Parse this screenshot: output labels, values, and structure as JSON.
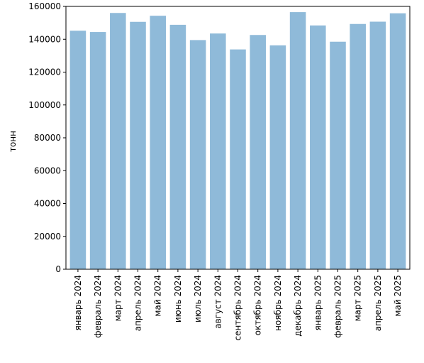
{
  "chart_data": {
    "type": "bar",
    "ylabel": "тонн",
    "xlabel": "",
    "title": "",
    "ylim": [
      0,
      160000
    ],
    "yticks": [
      0,
      20000,
      40000,
      60000,
      80000,
      100000,
      120000,
      140000,
      160000
    ],
    "categories": [
      "январь 2024",
      "февраль 2024",
      "март 2024",
      "апрель 2024",
      "май 2024",
      "июнь 2024",
      "июль 2024",
      "август 2024",
      "сентябрь 2024",
      "октябрь 2024",
      "ноябрь 2024",
      "декабрь 2024",
      "январь 2025",
      "февраль 2025",
      "март 2025",
      "апрель 2025",
      "май 2025"
    ],
    "values": [
      145200,
      144400,
      156000,
      150600,
      154300,
      148800,
      139500,
      143500,
      133800,
      142600,
      136300,
      156500,
      148400,
      138500,
      149300,
      150700,
      155800
    ],
    "bar_color": "#8fbad9",
    "grid": false
  }
}
